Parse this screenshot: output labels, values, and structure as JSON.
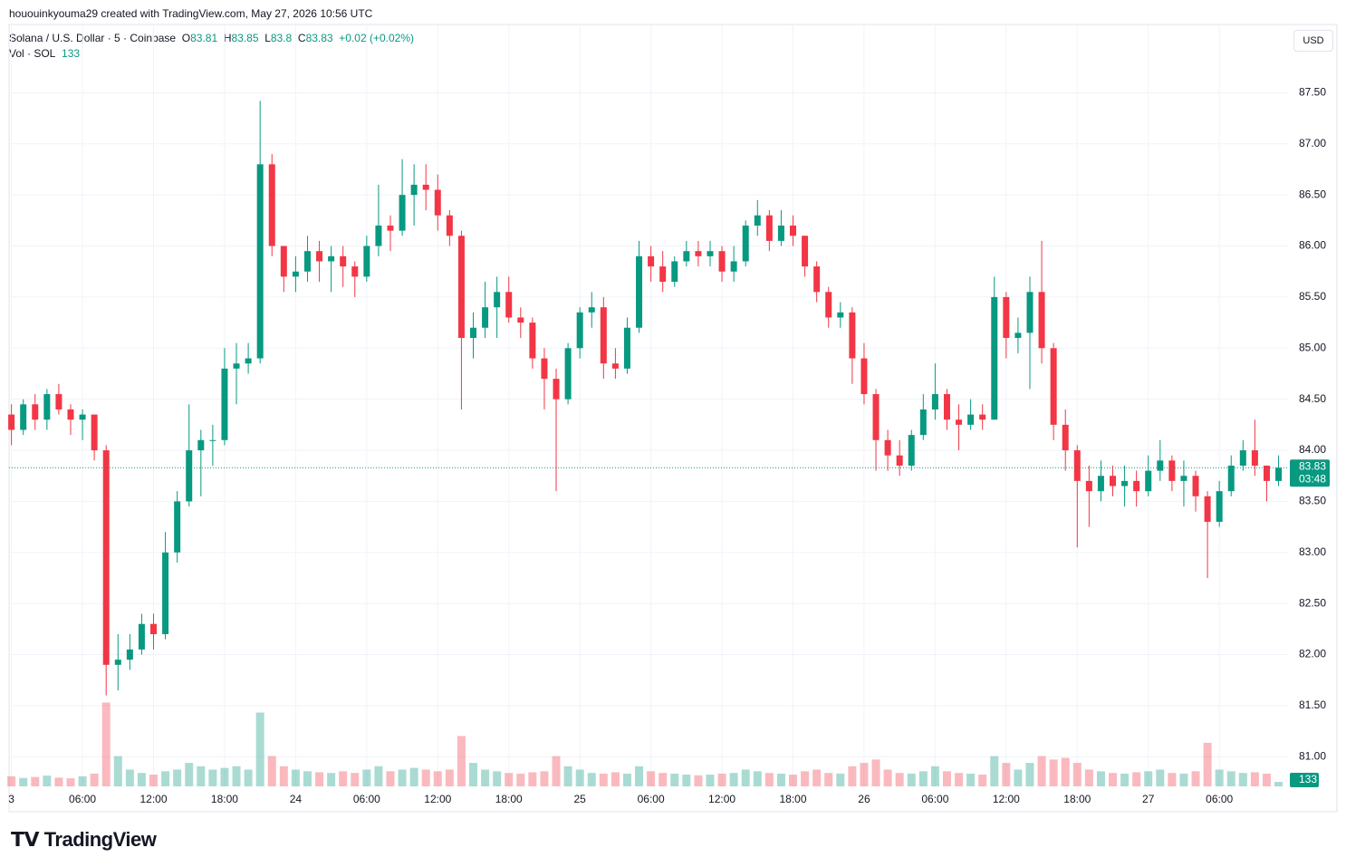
{
  "header": {
    "caption": "hououinkyouma29 created with TradingView.com, May 27, 2026 10:56 UTC"
  },
  "legend": {
    "symbol": "Solana / U.S. Dollar · 5 · Coinbase",
    "o_label": "O",
    "open": 83.81,
    "h_label": "H",
    "high": 83.85,
    "l_label": "L",
    "low": 83.8,
    "c_label": "C",
    "close": 83.83,
    "change": "+0.02 (+0.02%)",
    "vol_label": "Vol · SOL"
  },
  "currency_button": "USD",
  "countdown": "03:48",
  "logo": "TradingView",
  "chart_data": {
    "type": "candlestick",
    "up_color": "#089981",
    "down_color": "#f23645",
    "grid": true,
    "x": [
      0,
      1,
      2,
      3,
      4,
      5,
      6,
      7,
      8,
      9,
      10,
      11,
      12,
      13,
      14,
      15,
      16,
      17,
      18,
      19,
      20,
      21,
      22,
      23,
      24,
      25,
      26,
      27,
      28,
      29,
      30,
      31,
      32,
      33,
      34,
      35,
      36,
      37,
      38,
      39,
      40,
      41,
      42,
      43,
      44,
      45,
      46,
      47,
      48,
      49,
      50,
      51,
      52,
      53,
      54,
      55,
      56,
      57,
      58,
      59,
      60,
      61,
      62,
      63,
      64,
      65,
      66,
      67,
      68,
      69,
      70,
      71,
      72,
      73,
      74,
      75,
      76,
      77,
      78,
      79,
      80,
      81,
      82,
      83,
      84,
      85,
      86,
      87,
      88,
      89,
      90,
      91,
      92,
      93,
      94,
      95,
      96,
      97,
      98,
      99,
      100,
      101,
      102,
      103,
      104,
      105,
      106,
      107
    ],
    "open": [
      84.35,
      84.2,
      84.45,
      84.3,
      84.55,
      84.4,
      84.3,
      84.35,
      84.0,
      81.9,
      81.95,
      82.05,
      82.3,
      82.2,
      83.0,
      83.5,
      84.0,
      84.1,
      84.1,
      84.8,
      84.85,
      84.9,
      86.8,
      86.0,
      85.7,
      85.75,
      85.95,
      85.85,
      85.9,
      85.8,
      85.7,
      86.0,
      86.2,
      86.15,
      86.5,
      86.6,
      86.55,
      86.3,
      86.1,
      85.1,
      85.2,
      85.4,
      85.55,
      85.3,
      85.25,
      84.9,
      84.7,
      84.5,
      85.0,
      85.35,
      85.4,
      84.85,
      84.8,
      85.2,
      85.9,
      85.8,
      85.65,
      85.85,
      85.95,
      85.9,
      85.95,
      85.75,
      85.85,
      86.2,
      86.3,
      86.05,
      86.2,
      86.1,
      85.8,
      85.55,
      85.3,
      85.35,
      84.9,
      84.55,
      84.1,
      83.95,
      83.85,
      84.15,
      84.4,
      84.55,
      84.3,
      84.25,
      84.35,
      84.3,
      85.5,
      85.1,
      85.15,
      85.55,
      85.0,
      84.25,
      84.0,
      83.7,
      83.6,
      83.75,
      83.65,
      83.7,
      83.6,
      83.8,
      83.9,
      83.7,
      83.75,
      83.55,
      83.3,
      83.6,
      83.85,
      84.0,
      83.85,
      83.7
    ],
    "high": [
      84.45,
      84.5,
      84.55,
      84.6,
      84.65,
      84.45,
      84.4,
      84.35,
      84.05,
      82.2,
      82.2,
      82.4,
      82.4,
      83.2,
      83.6,
      84.45,
      84.2,
      84.25,
      85.0,
      85.05,
      85.05,
      87.42,
      86.9,
      86.0,
      85.9,
      86.1,
      86.05,
      86.0,
      86.0,
      85.85,
      86.1,
      86.6,
      86.3,
      86.85,
      86.8,
      86.8,
      86.7,
      86.35,
      86.15,
      85.35,
      85.65,
      85.7,
      85.7,
      85.4,
      85.3,
      85.0,
      84.8,
      85.05,
      85.4,
      85.55,
      85.5,
      85.0,
      85.3,
      86.05,
      86.0,
      85.95,
      85.9,
      86.05,
      86.05,
      86.05,
      86.0,
      86.0,
      86.25,
      86.45,
      86.35,
      86.35,
      86.3,
      86.1,
      85.85,
      85.6,
      85.45,
      85.4,
      85.05,
      84.6,
      84.2,
      84.1,
      84.2,
      84.55,
      84.85,
      84.6,
      84.45,
      84.5,
      84.45,
      85.7,
      85.55,
      85.3,
      85.7,
      86.05,
      85.05,
      84.4,
      84.05,
      83.85,
      83.9,
      83.85,
      83.85,
      83.8,
      83.95,
      84.1,
      83.95,
      83.9,
      83.8,
      83.6,
      83.7,
      83.95,
      84.1,
      84.3,
      83.85,
      83.95
    ],
    "low": [
      84.05,
      84.15,
      84.2,
      84.2,
      84.35,
      84.15,
      84.1,
      83.9,
      81.6,
      81.65,
      81.85,
      82.0,
      82.05,
      82.15,
      82.9,
      83.45,
      83.55,
      83.85,
      84.05,
      84.45,
      84.75,
      84.85,
      85.9,
      85.55,
      85.55,
      85.65,
      85.65,
      85.55,
      85.6,
      85.5,
      85.65,
      85.9,
      85.95,
      86.1,
      86.2,
      86.35,
      86.15,
      86.0,
      84.4,
      84.9,
      85.1,
      85.1,
      85.25,
      85.1,
      84.8,
      84.4,
      83.6,
      84.45,
      84.9,
      85.2,
      84.7,
      84.7,
      84.75,
      85.15,
      85.65,
      85.55,
      85.6,
      85.8,
      85.8,
      85.8,
      85.65,
      85.65,
      85.8,
      86.1,
      85.95,
      86.0,
      86.0,
      85.7,
      85.45,
      85.2,
      85.2,
      84.65,
      84.45,
      83.8,
      83.8,
      83.75,
      83.8,
      84.1,
      84.3,
      84.2,
      84.0,
      84.2,
      84.2,
      84.3,
      84.9,
      84.95,
      84.6,
      84.85,
      84.1,
      83.8,
      83.05,
      83.25,
      83.5,
      83.55,
      83.45,
      83.45,
      83.55,
      83.7,
      83.6,
      83.45,
      83.4,
      82.75,
      83.25,
      83.55,
      83.8,
      83.75,
      83.5,
      83.65
    ],
    "close": [
      84.2,
      84.45,
      84.3,
      84.55,
      84.4,
      84.3,
      84.35,
      84.0,
      81.9,
      81.95,
      82.05,
      82.3,
      82.2,
      83.0,
      83.5,
      84.0,
      84.1,
      84.1,
      84.8,
      84.85,
      84.9,
      86.8,
      86.0,
      85.7,
      85.75,
      85.95,
      85.85,
      85.9,
      85.8,
      85.7,
      86.0,
      86.2,
      86.15,
      86.5,
      86.6,
      86.55,
      86.3,
      86.1,
      85.1,
      85.2,
      85.4,
      85.55,
      85.3,
      85.25,
      84.9,
      84.7,
      84.5,
      85.0,
      85.35,
      85.4,
      84.85,
      84.8,
      85.2,
      85.9,
      85.8,
      85.65,
      85.85,
      85.95,
      85.9,
      85.95,
      85.75,
      85.85,
      86.2,
      86.3,
      86.05,
      86.2,
      86.1,
      85.8,
      85.55,
      85.3,
      85.35,
      84.9,
      84.55,
      84.1,
      83.95,
      83.85,
      84.15,
      84.4,
      84.55,
      84.3,
      84.25,
      84.35,
      84.3,
      85.5,
      85.1,
      85.15,
      85.55,
      85.0,
      84.25,
      84.0,
      83.7,
      83.6,
      83.75,
      83.65,
      83.7,
      83.6,
      83.8,
      83.9,
      83.7,
      83.75,
      83.55,
      83.3,
      83.6,
      83.85,
      84.0,
      83.85,
      83.7,
      83.83
    ],
    "volume": [
      300,
      250,
      280,
      320,
      260,
      240,
      300,
      380,
      2500,
      900,
      500,
      400,
      350,
      450,
      500,
      700,
      600,
      500,
      550,
      600,
      500,
      2200,
      900,
      600,
      500,
      450,
      420,
      400,
      450,
      400,
      500,
      600,
      450,
      500,
      550,
      500,
      450,
      500,
      1500,
      700,
      500,
      450,
      400,
      380,
      420,
      450,
      900,
      600,
      500,
      400,
      380,
      420,
      380,
      600,
      450,
      400,
      380,
      350,
      330,
      350,
      380,
      400,
      500,
      450,
      400,
      380,
      350,
      450,
      500,
      400,
      380,
      600,
      700,
      800,
      500,
      400,
      380,
      450,
      600,
      450,
      400,
      380,
      350,
      900,
      700,
      500,
      700,
      900,
      800,
      850,
      700,
      500,
      450,
      400,
      380,
      420,
      450,
      500,
      400,
      380,
      450,
      1300,
      500,
      450,
      400,
      420,
      380,
      133
    ],
    "volume_ylim": [
      0,
      2700
    ],
    "xlim": [
      -0.2,
      107.8
    ],
    "xticks": [
      {
        "value": 0,
        "label": "3"
      },
      {
        "value": 6,
        "label": "06:00"
      },
      {
        "value": 12,
        "label": "12:00"
      },
      {
        "value": 18,
        "label": "18:00"
      },
      {
        "value": 24,
        "label": "24"
      },
      {
        "value": 30,
        "label": "06:00"
      },
      {
        "value": 36,
        "label": "12:00"
      },
      {
        "value": 42,
        "label": "18:00"
      },
      {
        "value": 48,
        "label": "25"
      },
      {
        "value": 54,
        "label": "06:00"
      },
      {
        "value": 60,
        "label": "12:00"
      },
      {
        "value": 66,
        "label": "18:00"
      },
      {
        "value": 72,
        "label": "26"
      },
      {
        "value": 78,
        "label": "06:00"
      },
      {
        "value": 84,
        "label": "12:00"
      },
      {
        "value": 90,
        "label": "18:00"
      },
      {
        "value": 96,
        "label": "27"
      },
      {
        "value": 102,
        "label": "06:00"
      }
    ],
    "ylim": [
      80.71,
      88.16
    ],
    "yticks": [
      {
        "value": 81,
        "label": "81.00"
      },
      {
        "value": 81.5,
        "label": "81.50"
      },
      {
        "value": 82,
        "label": "82.00"
      },
      {
        "value": 82.5,
        "label": "82.50"
      },
      {
        "value": 83,
        "label": "83.00"
      },
      {
        "value": 83.5,
        "label": "83.50"
      },
      {
        "value": 84,
        "label": "84.00"
      },
      {
        "value": 84.5,
        "label": "84.50"
      },
      {
        "value": 85,
        "label": "85.00"
      },
      {
        "value": 85.5,
        "label": "85.50"
      },
      {
        "value": 86,
        "label": "86.00"
      },
      {
        "value": 86.5,
        "label": "86.50"
      },
      {
        "value": 87,
        "label": "87.00"
      },
      {
        "value": 87.5,
        "label": "87.50"
      }
    ]
  }
}
